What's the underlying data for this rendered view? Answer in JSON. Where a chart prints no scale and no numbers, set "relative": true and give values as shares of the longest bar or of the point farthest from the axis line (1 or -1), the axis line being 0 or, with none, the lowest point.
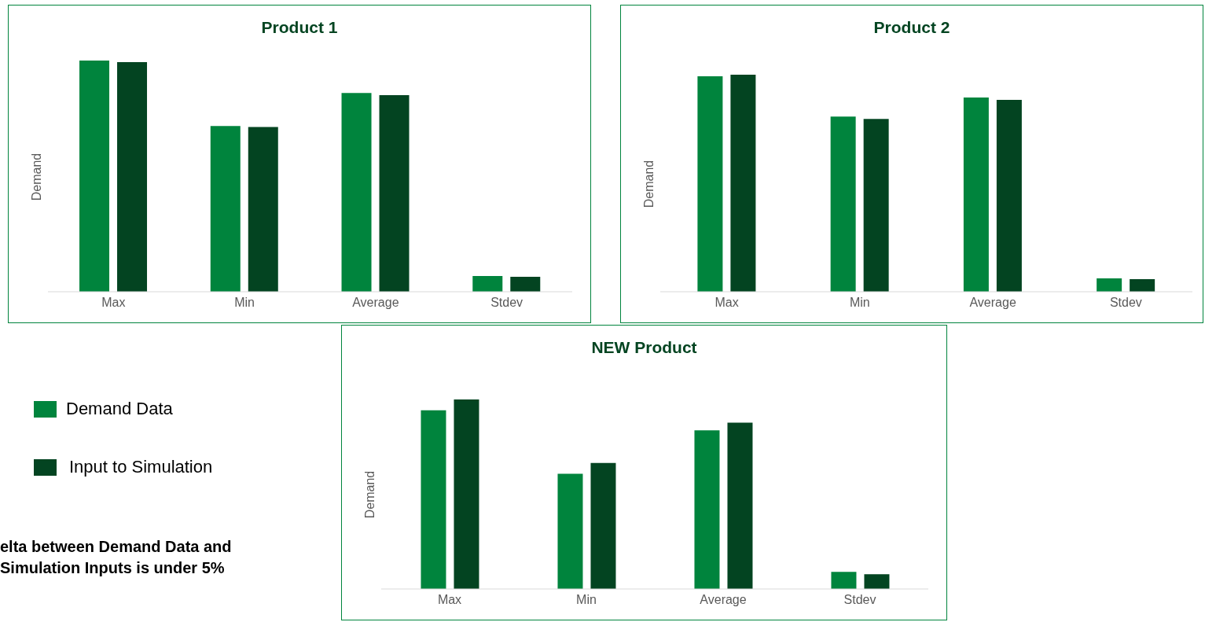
{
  "chart_data": [
    {
      "type": "bar",
      "title": "Product 1",
      "ylabel": "Demand",
      "categories": [
        "Max",
        "Min",
        "Average",
        "Stdev"
      ],
      "relative": true,
      "legend": "bottom left",
      "annotations": [
        "elta between Demand Data and Simulation Inputs is under 5%"
      ],
      "series": [
        {
          "name": "Demand Data",
          "color": "#00843d",
          "values": [
            1,
            0.717,
            0.86,
            0.068
          ]
        },
        {
          "name": "Input to Simulation",
          "color": "#034421",
          "values": [
            0.993,
            0.713,
            0.85,
            0.065
          ]
        }
      ]
    },
    {
      "type": "bar",
      "title": "Product 2",
      "ylabel": "Demand",
      "categories": [
        "Max",
        "Min",
        "Average",
        "Stdev"
      ],
      "relative": true,
      "series": [
        {
          "color": "#00843d",
          "values": [
            0.993,
            0.807,
            0.895,
            0.062
          ]
        },
        {
          "color": "#034421",
          "values": [
            1,
            0.796,
            0.884,
            0.058
          ]
        }
      ]
    },
    {
      "type": "bar",
      "title": "NEW Product",
      "ylabel": "Demand",
      "categories": [
        "Max",
        "Min",
        "Average",
        "Stdev"
      ],
      "relative": true,
      "series": [
        {
          "color": "#00843d",
          "values": [
            0.943,
            0.608,
            0.837,
            0.09
          ]
        },
        {
          "color": "#034421",
          "values": [
            1,
            0.665,
            0.878,
            0.078
          ]
        }
      ]
    }
  ]
}
